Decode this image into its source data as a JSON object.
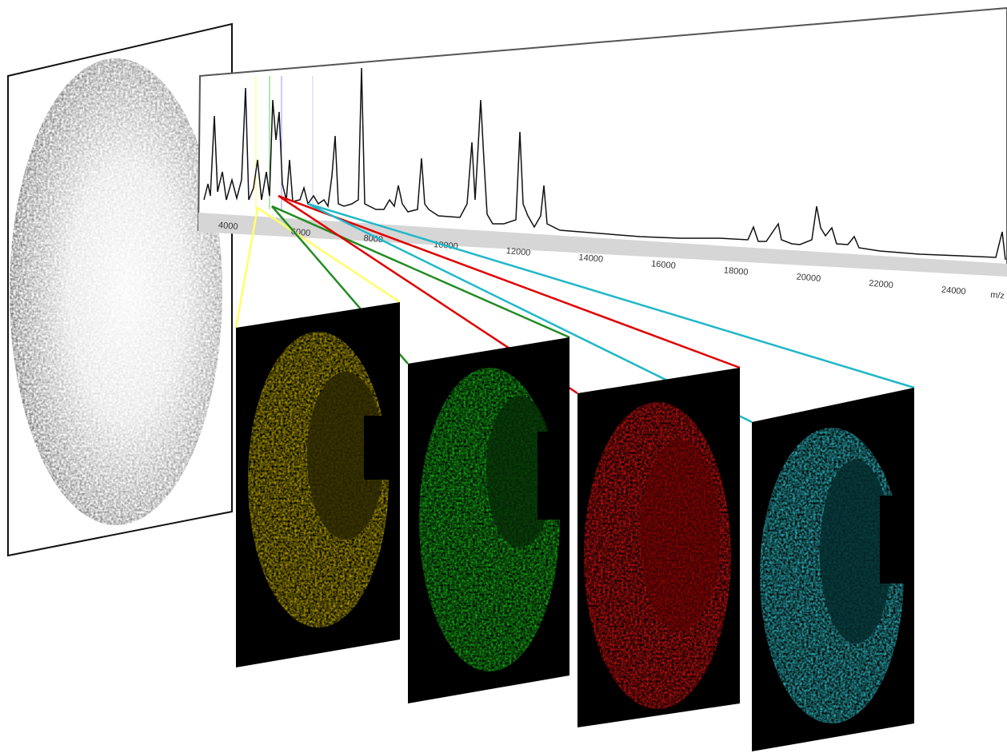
{
  "spectrum": {
    "tick_labels": [
      "4000",
      "6000",
      "8000",
      "10000",
      "12000",
      "14000",
      "16000",
      "18000",
      "20000",
      "22000",
      "24000"
    ],
    "axis_label": "m/z"
  }
}
